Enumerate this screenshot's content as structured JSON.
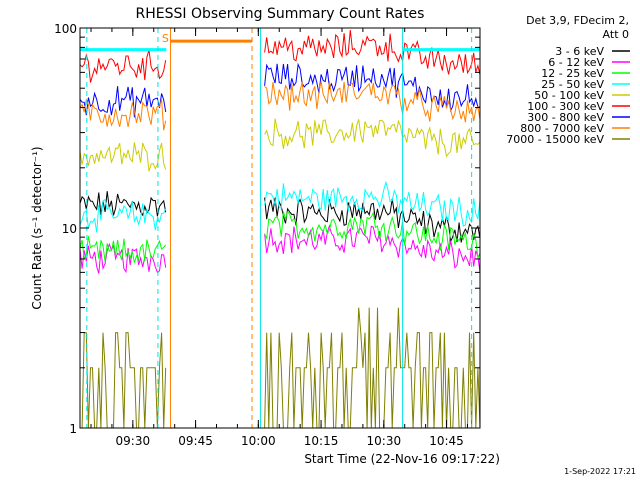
{
  "chart_data": {
    "type": "line",
    "title": "RHESSI Observing Summary Count Rates",
    "xlabel": "Start Time (22-Nov-16 09:17:22)",
    "ylabel": "Count Rate (s⁻¹ detector⁻¹)",
    "yscale": "log",
    "ylim": [
      1,
      100
    ],
    "xlim": [
      "09:17:22",
      "10:53:00"
    ],
    "x_ticks": [
      "09:30",
      "09:45",
      "10:00",
      "10:15",
      "10:30",
      "10:45"
    ],
    "y_ticks": [
      "1",
      "10",
      "100"
    ],
    "legend_header": [
      "Det 3,9, FDecim 2,",
      "Att 0"
    ],
    "legend_position": "right",
    "flag_label": "S",
    "footer_date": "1-Sep-2022 17:21",
    "gap": {
      "start": "09:38:00",
      "end": "10:01:30"
    },
    "markers": [
      {
        "time": "09:19:00",
        "kind": "night",
        "color": "#00e5e5"
      },
      {
        "time": "09:36:00",
        "kind": "saa",
        "color": "#00e5e5"
      },
      {
        "time": "09:39:00",
        "kind": "saa",
        "color": "#ff8000"
      },
      {
        "time": "09:58:30",
        "kind": "saa",
        "color": "#ff8000"
      },
      {
        "time": "10:00:30",
        "kind": "night",
        "color": "#00e5e5"
      },
      {
        "time": "10:34:30",
        "kind": "night",
        "color": "#00e5e5"
      },
      {
        "time": "10:51:00",
        "kind": "night",
        "color": "#00e5e5"
      }
    ],
    "series": [
      {
        "name": "3 - 6 keV",
        "color": "#000000",
        "pre": 13,
        "post": 12.5,
        "end": 9.5,
        "bump": 0.12
      },
      {
        "name": "6 - 12 keV",
        "color": "#ff00ff",
        "pre": 7,
        "post": 9,
        "end": 7,
        "bump": 0.12
      },
      {
        "name": "12 - 25 keV",
        "color": "#00ff00",
        "pre": 7.5,
        "post": 10.5,
        "end": 8.5,
        "bump": 0.12
      },
      {
        "name": "25 - 50 keV",
        "color": "#00ffff",
        "pre": 11.5,
        "post": 14.5,
        "end": 12,
        "bump": 0.08
      },
      {
        "name": "50 - 100 keV",
        "color": "#cccc00",
        "pre": 23,
        "post": 30,
        "end": 26,
        "bump": 0.12
      },
      {
        "name": "100 - 300 keV",
        "color": "#ff0000",
        "pre": 65,
        "post": 82,
        "end": 64,
        "bump": 0.14
      },
      {
        "name": "300 - 800 keV",
        "color": "#0000ff",
        "pre": 43,
        "post": 58,
        "end": 43,
        "bump": 0.14
      },
      {
        "name": "800 - 7000 keV",
        "color": "#ff8000",
        "pre": 37,
        "post": 48,
        "end": 37,
        "bump": 0.14
      },
      {
        "name": "7000 - 15000 keV",
        "color": "#808000",
        "pre": 1.6,
        "post": 1.6,
        "end": 1.6,
        "bump": 0.3
      }
    ],
    "attenuator_level": 78,
    "saa_level": 86
  }
}
